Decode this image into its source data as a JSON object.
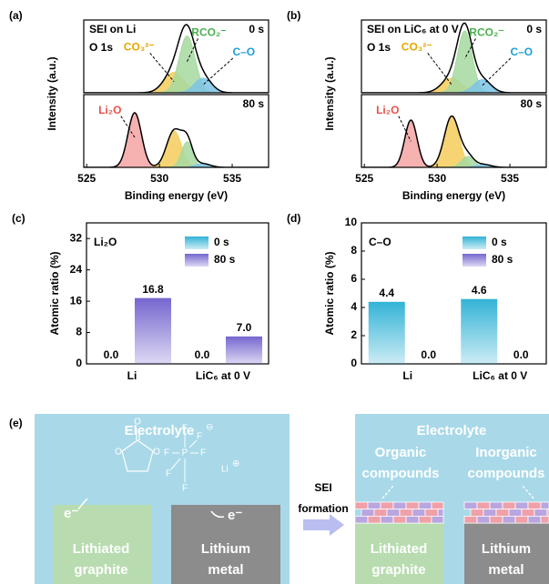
{
  "chart_data": [
    {
      "type": "spectra",
      "panel_label": "(a)",
      "title": "SEI on Li",
      "subtitle": "O 1s",
      "xlabel": "Binding energy (eV)",
      "ylabel": "Intensity (a.u.)",
      "xlim": [
        524.8,
        537.5
      ],
      "xticks": [
        525,
        530,
        535
      ],
      "components": [
        {
          "name": "Li₂O",
          "color": "#f4a3a3",
          "label_color": "#e8504a"
        },
        {
          "name": "CO₃²⁻",
          "color": "#f5cd5a",
          "label_color": "#e6a800"
        },
        {
          "name": "RCO₂⁻",
          "color": "#a6d9a0",
          "label_color": "#4caf50"
        },
        {
          "name": "C–O",
          "color": "#7cc4e6",
          "label_color": "#1e9fd6"
        }
      ],
      "subplots": [
        {
          "label": "0 s",
          "ylim": [
            0,
            1
          ],
          "centers": [
            null,
            531.0,
            531.9,
            533.0
          ],
          "heights": [
            null,
            0.28,
            0.78,
            0.2
          ],
          "fwhms": [
            null,
            1.6,
            1.3,
            1.4
          ]
        },
        {
          "label": "80 s",
          "ylim": [
            0,
            1
          ],
          "centers": [
            528.3,
            531.0,
            531.9,
            533.0
          ],
          "heights": [
            0.75,
            0.5,
            0.35,
            0.05
          ],
          "fwhms": [
            1.1,
            1.2,
            0.9,
            1.2
          ]
        }
      ]
    },
    {
      "type": "spectra",
      "panel_label": "(b)",
      "title": "SEI on LiC₆ at 0 V",
      "subtitle": "O 1s",
      "xlabel": "Binding energy (eV)",
      "ylabel": "Intensity (a.u.)",
      "xlim": [
        524.8,
        537.5
      ],
      "xticks": [
        525,
        530,
        535
      ],
      "components": [
        {
          "name": "Li₂O",
          "color": "#f4a3a3",
          "label_color": "#e8504a"
        },
        {
          "name": "CO₃²⁻",
          "color": "#f5cd5a",
          "label_color": "#e6a800"
        },
        {
          "name": "RCO₂⁻",
          "color": "#a6d9a0",
          "label_color": "#4caf50"
        },
        {
          "name": "C–O",
          "color": "#7cc4e6",
          "label_color": "#1e9fd6"
        }
      ],
      "subplots": [
        {
          "label": "0 s",
          "ylim": [
            0,
            1
          ],
          "centers": [
            null,
            531.0,
            531.9,
            533.1
          ],
          "heights": [
            null,
            0.2,
            0.85,
            0.18
          ],
          "fwhms": [
            null,
            1.6,
            1.2,
            1.4
          ]
        },
        {
          "label": "80 s",
          "ylim": [
            0,
            1
          ],
          "centers": [
            528.2,
            531.0,
            532.1,
            533.2
          ],
          "heights": [
            0.65,
            0.7,
            0.15,
            0.04
          ],
          "fwhms": [
            1.0,
            1.2,
            1.0,
            1.2
          ]
        }
      ]
    },
    {
      "type": "bar",
      "panel_label": "(c)",
      "title": "Li₂O",
      "ylabel": "Atomic ratio (%)",
      "categories": [
        "Li",
        "LiC₆ at 0 V"
      ],
      "ylim": [
        0,
        36
      ],
      "yticks": [
        0,
        8,
        16,
        24,
        32
      ],
      "series": [
        {
          "name": "0 s",
          "color": "#33b3d6",
          "values": [
            0.0,
            0.0
          ],
          "value_labels": [
            "0.0",
            "0.0"
          ]
        },
        {
          "name": "80 s",
          "color": "#7566cf",
          "values": [
            16.8,
            7.0
          ],
          "value_labels": [
            "16.8",
            "7.0"
          ]
        }
      ]
    },
    {
      "type": "bar",
      "panel_label": "(d)",
      "title": "C–O",
      "ylabel": "Atomic ratio (%)",
      "categories": [
        "Li",
        "LiC₆ at 0 V"
      ],
      "ylim": [
        0,
        10
      ],
      "yticks": [
        0,
        2,
        4,
        6,
        8,
        10
      ],
      "series": [
        {
          "name": "0 s",
          "color": "#33b3d6",
          "values": [
            4.4,
            4.6
          ],
          "value_labels": [
            "4.4",
            "4.6"
          ]
        },
        {
          "name": "80 s",
          "color": "#7566cf",
          "values": [
            0.0,
            0.0
          ],
          "value_labels": [
            "0.0",
            "0.0"
          ]
        }
      ]
    }
  ],
  "diagram": {
    "panel_label": "(e)",
    "before": {
      "electrolyte": "Electrolyte",
      "anode": [
        "Lithiated",
        "graphite"
      ],
      "metal": [
        "Lithium",
        "metal"
      ],
      "electron": "e⁻"
    },
    "process": [
      "SEI",
      "formation"
    ],
    "after": {
      "electrolyte": "Electrolyte",
      "organic": [
        "Organic",
        "compounds"
      ],
      "inorganic": [
        "Inorganic",
        "compounds"
      ],
      "anode": [
        "Lithiated",
        "graphite"
      ],
      "metal": [
        "Lithium",
        "metal"
      ]
    },
    "molecules": {
      "oxygen": "O",
      "phosphorus": "P",
      "fluorine": "F",
      "anion_charge": "⊖",
      "lithium": "Li",
      "cation_charge": "⊕"
    }
  }
}
